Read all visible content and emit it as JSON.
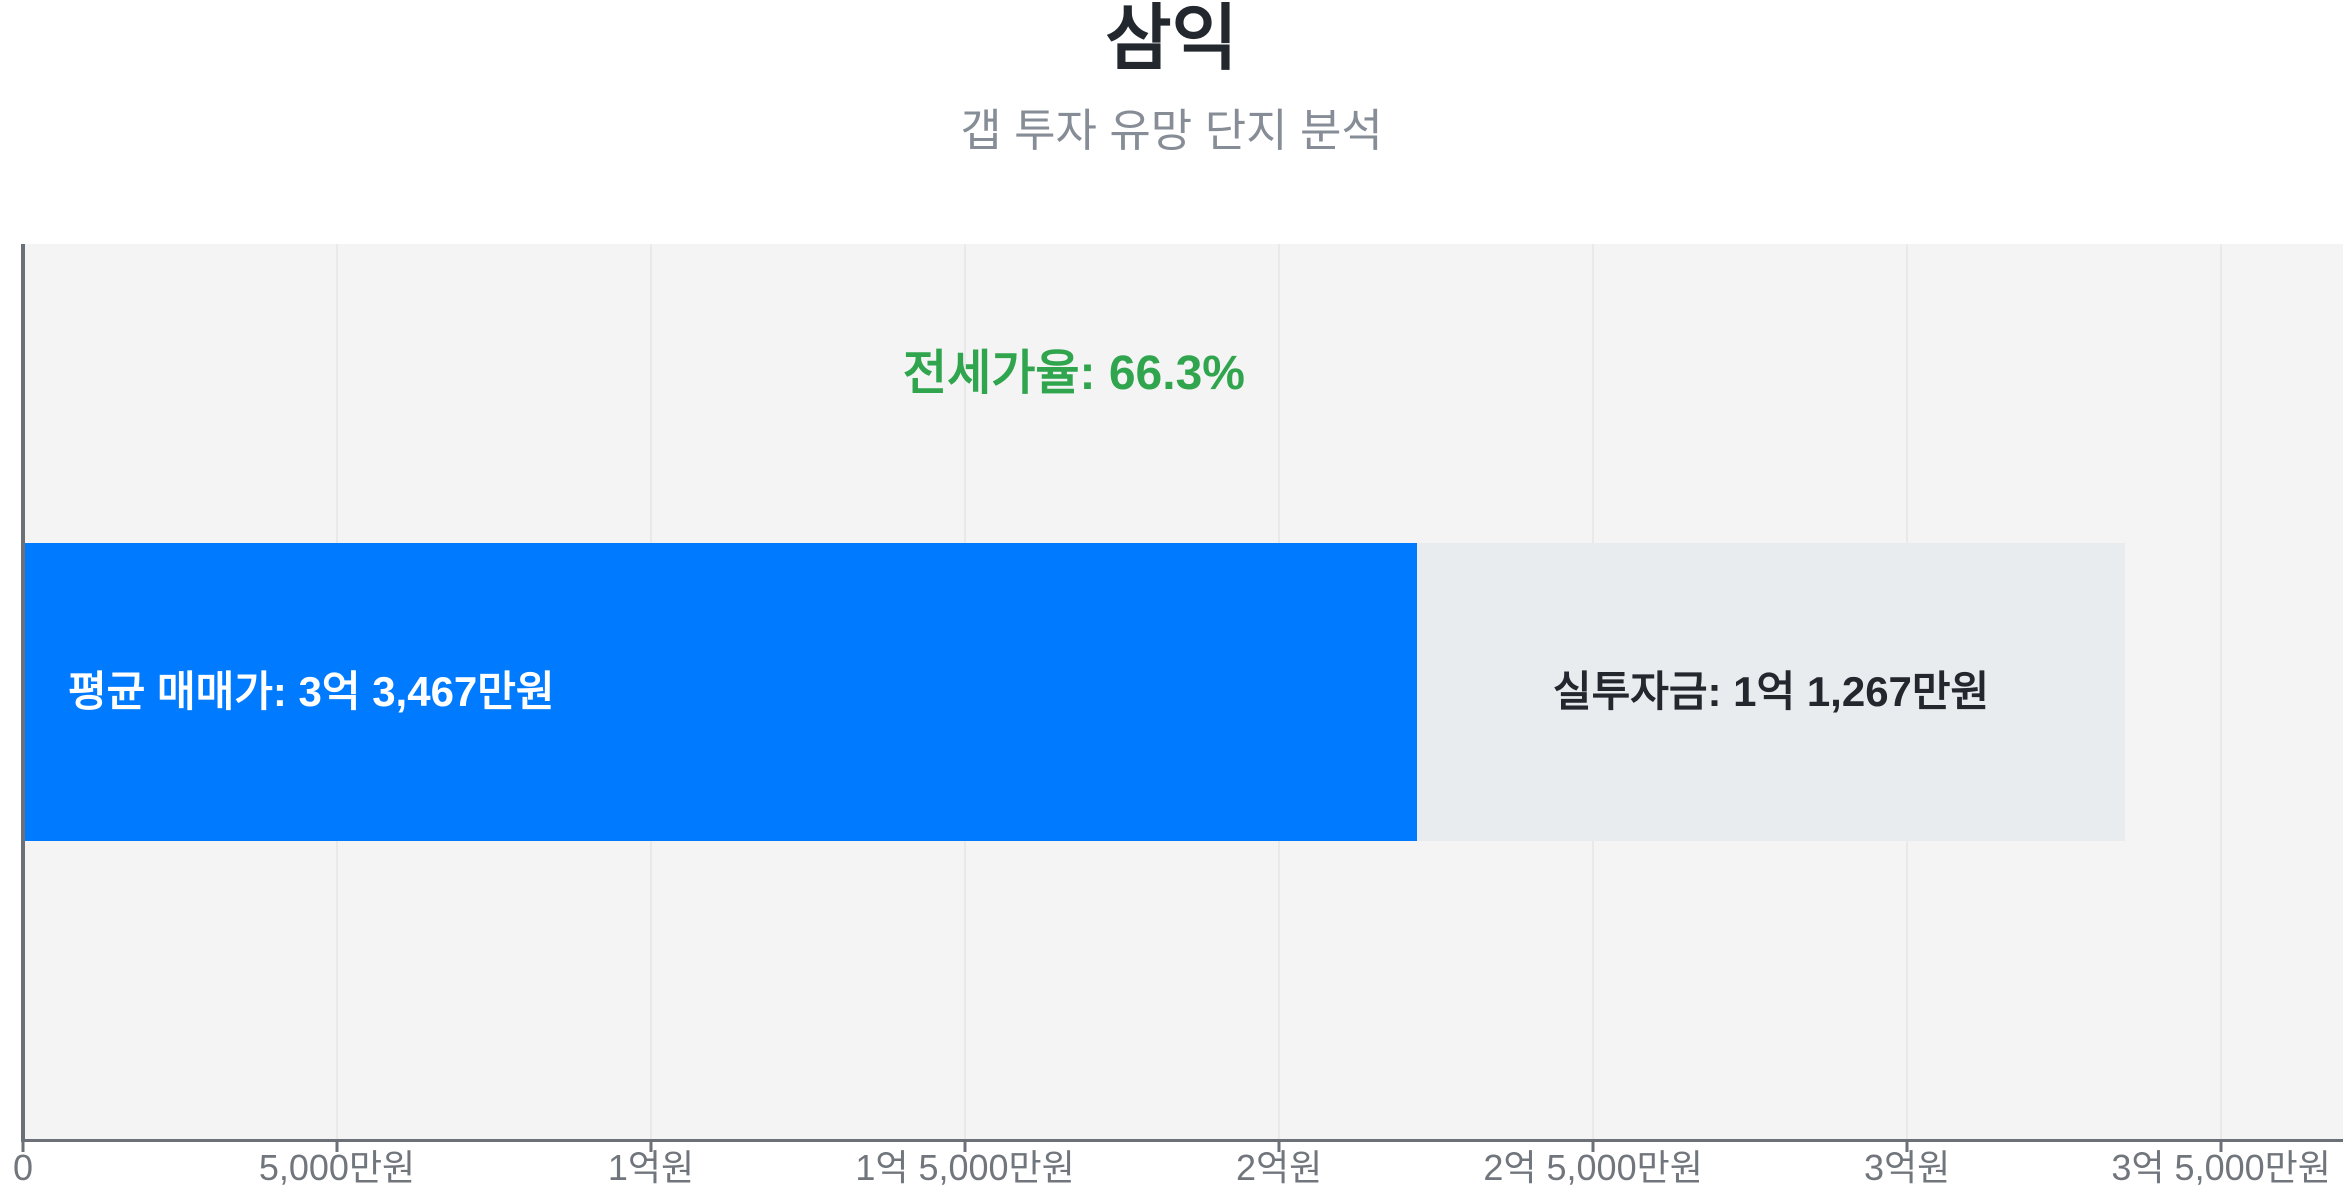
{
  "header": {
    "title": "삼익",
    "subtitle": "갭 투자 유망 단지 분석"
  },
  "colors": {
    "bar_primary": "#007bff",
    "bar_secondary": "#e9ecef",
    "plot_background": "#f4f4f5",
    "grid_line": "#e9e9e9",
    "axis_line": "#6b7079",
    "axis_label": "#71767d",
    "annotation_green": "#30a54e",
    "label_on_primary": "#ffffff",
    "label_on_secondary": "#23272e",
    "title": "#23272e",
    "subtitle": "#878d96"
  },
  "chart_data": {
    "type": "bar",
    "orientation": "horizontal",
    "stacked": true,
    "title": "삼익",
    "subtitle": "갭 투자 유망 단지 분석",
    "grid": true,
    "axis_unit": "만원",
    "axis_min": 0,
    "axis_max": 36940,
    "x_ticks": [
      {
        "value": 0,
        "label": "0"
      },
      {
        "value": 5000,
        "label": "5,000만원"
      },
      {
        "value": 10000,
        "label": "1억원"
      },
      {
        "value": 15000,
        "label": "1억 5,000만원"
      },
      {
        "value": 20000,
        "label": "2억원"
      },
      {
        "value": 25000,
        "label": "2억 5,000만원"
      },
      {
        "value": 30000,
        "label": "3억원"
      },
      {
        "value": 35000,
        "label": "3억 5,000만원"
      }
    ],
    "bar": {
      "total_value": 33467,
      "jeonse_ratio_percent": 66.3,
      "segments": [
        {
          "value": 22200,
          "color_key": "bar_primary",
          "label": "평균 매매가: 3억 3,467만원",
          "label_color_key": "label_on_primary",
          "label_placement": "inside-left"
        },
        {
          "value": 11267,
          "color_key": "bar_secondary",
          "label": "실투자금: 1억 1,267만원",
          "label_color_key": "label_on_secondary",
          "label_placement": "inside-center"
        }
      ],
      "annotation": {
        "label": "전세가율: 66.3%",
        "placement": "above-bar-center"
      }
    }
  }
}
